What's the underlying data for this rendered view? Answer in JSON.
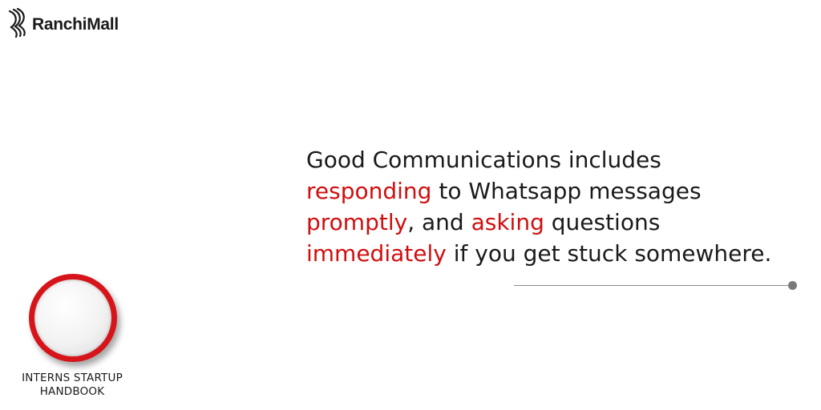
{
  "brand": {
    "name": "RanchiMall",
    "logo_icon": "ranchimall-swoosh-icon"
  },
  "message": {
    "line1": [
      {
        "text": "Good Communications includes",
        "highlight": false
      }
    ],
    "line2": [
      {
        "text": "responding",
        "highlight": true
      },
      {
        "text": " to Whatsapp messages",
        "highlight": false
      }
    ],
    "line3": [
      {
        "text": "promptly",
        "highlight": true
      },
      {
        "text": ", and ",
        "highlight": false
      },
      {
        "text": "asking",
        "highlight": true
      },
      {
        "text": " questions",
        "highlight": false
      }
    ],
    "line4": [
      {
        "text": "immediately",
        "highlight": true
      },
      {
        "text": " if you get stuck somewhere.",
        "highlight": false
      }
    ]
  },
  "handbook": {
    "line1": "INTERNS STARTUP",
    "line2": "HANDBOOK"
  },
  "colors": {
    "highlight": "#d10e0e",
    "text": "#1a1a1a",
    "badge_ring": "#d6141a",
    "divider": "#8a8a8a"
  }
}
